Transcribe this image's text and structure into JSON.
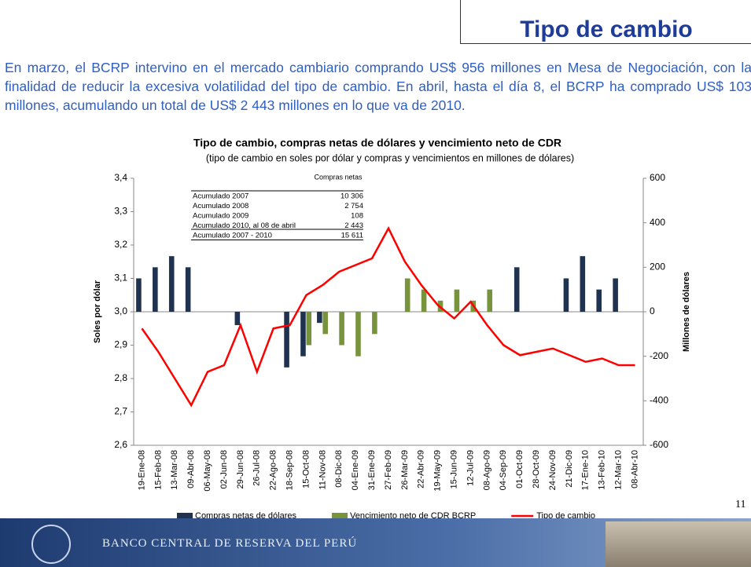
{
  "slide": {
    "title": "Tipo de cambio",
    "paragraph": "En marzo, el BCRP intervino en el mercado cambiario comprando US$ 956 millones en Mesa de Negociación, con la finalidad de reducir la excesiva volatilidad del tipo de cambio. En abril, hasta el día 8, el BCRP ha comprado US$ 103 millones, acumulando un total de US$ 2 443 millones en lo que va de 2010.",
    "footer": "BANCO CENTRAL DE RESERVA DEL PERÚ",
    "page_number": "11"
  },
  "chart_data": {
    "type": "bar-line",
    "title": "Tipo de cambio, compras netas de dólares y vencimiento neto de CDR",
    "subtitle": "(tipo de cambio en soles por dólar y compras y vencimientos en millones de dólares)",
    "ylabel": "Soles por dólar",
    "y2label": "Millones de dólares",
    "categories": [
      "19-Ene-08",
      "15-Feb-08",
      "13-Mar-08",
      "09-Abr-08",
      "06-May-08",
      "02-Jun-08",
      "29-Jun-08",
      "26-Jul-08",
      "22-Ago-08",
      "18-Sep-08",
      "15-Oct-08",
      "11-Nov-08",
      "08-Dic-08",
      "04-Ene-09",
      "31-Ene-09",
      "27-Feb-09",
      "26-Mar-09",
      "22-Abr-09",
      "19-May-09",
      "15-Jun-09",
      "12-Jul-09",
      "08-Ago-09",
      "04-Sep-09",
      "01-Oct-09",
      "28-Oct-09",
      "24-Nov-09",
      "21-Dic-09",
      "17-Ene-10",
      "13-Feb-10",
      "12-Mar-10",
      "08-Abr-10"
    ],
    "series": [
      {
        "name": "Compras netas de dólares",
        "color": "#1f3350",
        "axis": "y2",
        "kind": "bar",
        "values": [
          150,
          200,
          250,
          200,
          0,
          0,
          -60,
          0,
          0,
          -250,
          -200,
          -50,
          0,
          0,
          0,
          0,
          0,
          0,
          0,
          0,
          0,
          0,
          0,
          200,
          0,
          0,
          150,
          250,
          100,
          150,
          0
        ]
      },
      {
        "name": "Vencimiento neto de CDR BCRP",
        "color": "#77933c",
        "axis": "y2",
        "kind": "bar",
        "values": [
          0,
          0,
          0,
          0,
          0,
          0,
          0,
          0,
          0,
          0,
          -150,
          -100,
          -150,
          -200,
          -100,
          0,
          150,
          100,
          50,
          100,
          50,
          100,
          0,
          0,
          0,
          0,
          0,
          0,
          0,
          0,
          0
        ]
      },
      {
        "name": "Tipo de cambio",
        "color": "#ff0000",
        "axis": "y",
        "kind": "line",
        "values": [
          2.95,
          2.88,
          2.8,
          2.72,
          2.82,
          2.84,
          2.96,
          2.82,
          2.95,
          2.96,
          3.05,
          3.08,
          3.12,
          3.14,
          3.16,
          3.25,
          3.15,
          3.08,
          3.02,
          2.98,
          3.03,
          2.96,
          2.9,
          2.87,
          2.88,
          2.89,
          2.87,
          2.85,
          2.86,
          2.84,
          2.84
        ]
      }
    ],
    "ylim": [
      2.6,
      3.4
    ],
    "yticks": [
      {
        "value": 2.6,
        "label": "2,6"
      },
      {
        "value": 2.7,
        "label": "2,7"
      },
      {
        "value": 2.8,
        "label": "2,8"
      },
      {
        "value": 2.9,
        "label": "2,9"
      },
      {
        "value": 3.0,
        "label": "3,0"
      },
      {
        "value": 3.1,
        "label": "3,1"
      },
      {
        "value": 3.2,
        "label": "3,2"
      },
      {
        "value": 3.3,
        "label": "3,3"
      },
      {
        "value": 3.4,
        "label": "3,4"
      }
    ],
    "y2lim": [
      -600,
      600
    ],
    "y2ticks": [
      -600,
      -400,
      -200,
      0,
      200,
      400,
      600
    ],
    "table": {
      "header": "Compras netas",
      "rows": [
        [
          "Acumulado 2007",
          "10 306"
        ],
        [
          "Acumulado 2008",
          "2 754"
        ],
        [
          "Acumulado 2009",
          "108"
        ],
        [
          "Acumulado 2010, al 08 de abril",
          "2 443"
        ],
        [
          "Acumulado 2007 - 2010",
          "15 611"
        ]
      ]
    }
  }
}
